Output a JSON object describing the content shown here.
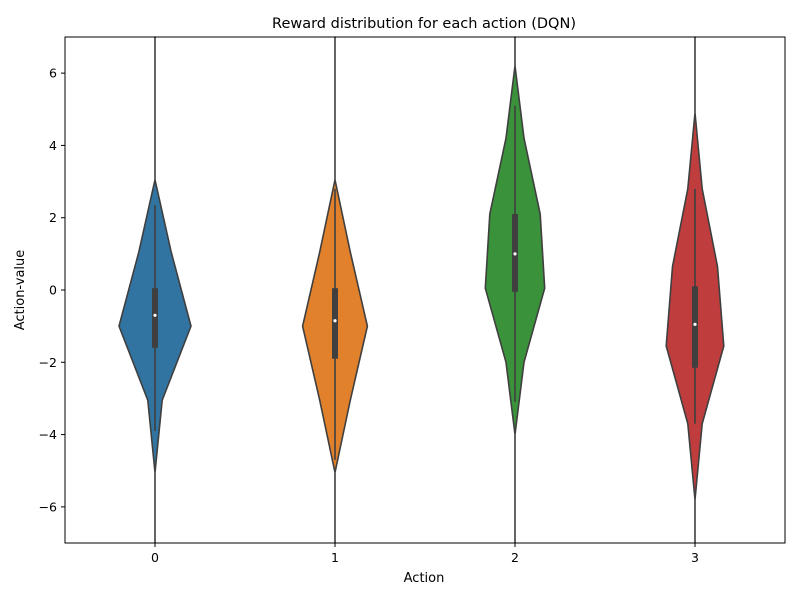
{
  "chart_data": {
    "type": "violin",
    "title": "Reward distribution for each action (DQN)",
    "xlabel": "Action",
    "ylabel": "Action-value",
    "categories": [
      "0",
      "1",
      "2",
      "3"
    ],
    "ylim": [
      -7,
      7
    ],
    "yticks": [
      -6,
      -4,
      -2,
      0,
      2,
      4,
      6
    ],
    "ytick_labels": [
      "−6",
      "−4",
      "−2",
      "0",
      "2",
      "4",
      "6"
    ],
    "grid": false,
    "legend": "none",
    "series": [
      {
        "category": "0",
        "color": "#3274a1",
        "median": -0.7,
        "q1": -1.6,
        "q3": 0.05,
        "whisker_low": -3.9,
        "whisker_high": 2.35,
        "profile": [
          [
            -7,
            0.0
          ],
          [
            -5.05,
            0.0
          ],
          [
            -3.05,
            0.04
          ],
          [
            -1.0,
            0.2
          ],
          [
            1.05,
            0.09
          ],
          [
            3.05,
            0.0
          ],
          [
            4.2,
            0.0
          ],
          [
            7,
            0.0
          ]
        ]
      },
      {
        "category": "1",
        "color": "#e1812c",
        "median": -0.85,
        "q1": -1.9,
        "q3": 0.05,
        "whisker_low": -4.7,
        "whisker_high": 2.8,
        "profile": [
          [
            -7,
            0.0
          ],
          [
            -5.05,
            0.0
          ],
          [
            -3.05,
            0.085
          ],
          [
            -1.0,
            0.18
          ],
          [
            1.05,
            0.085
          ],
          [
            3.05,
            0.0
          ],
          [
            5.0,
            0.0
          ],
          [
            7,
            0.0
          ]
        ]
      },
      {
        "category": "2",
        "color": "#3a923a",
        "median": 1.0,
        "q1": -0.05,
        "q3": 2.1,
        "whisker_low": -3.1,
        "whisker_high": 5.1,
        "profile": [
          [
            -7,
            0.0
          ],
          [
            -4.0,
            0.0
          ],
          [
            -2.0,
            0.05
          ],
          [
            0.05,
            0.165
          ],
          [
            2.1,
            0.14
          ],
          [
            4.2,
            0.05
          ],
          [
            6.2,
            0.0
          ],
          [
            7,
            0.0
          ]
        ]
      },
      {
        "category": "3",
        "color": "#c03d3e",
        "median": -0.95,
        "q1": -2.15,
        "q3": 0.1,
        "whisker_low": -3.7,
        "whisker_high": 2.8,
        "profile": [
          [
            -7,
            0.0
          ],
          [
            -5.8,
            0.0
          ],
          [
            -3.7,
            0.04
          ],
          [
            -1.55,
            0.16
          ],
          [
            0.65,
            0.125
          ],
          [
            2.8,
            0.04
          ],
          [
            4.9,
            0.0
          ],
          [
            7,
            0.0
          ]
        ]
      }
    ]
  }
}
